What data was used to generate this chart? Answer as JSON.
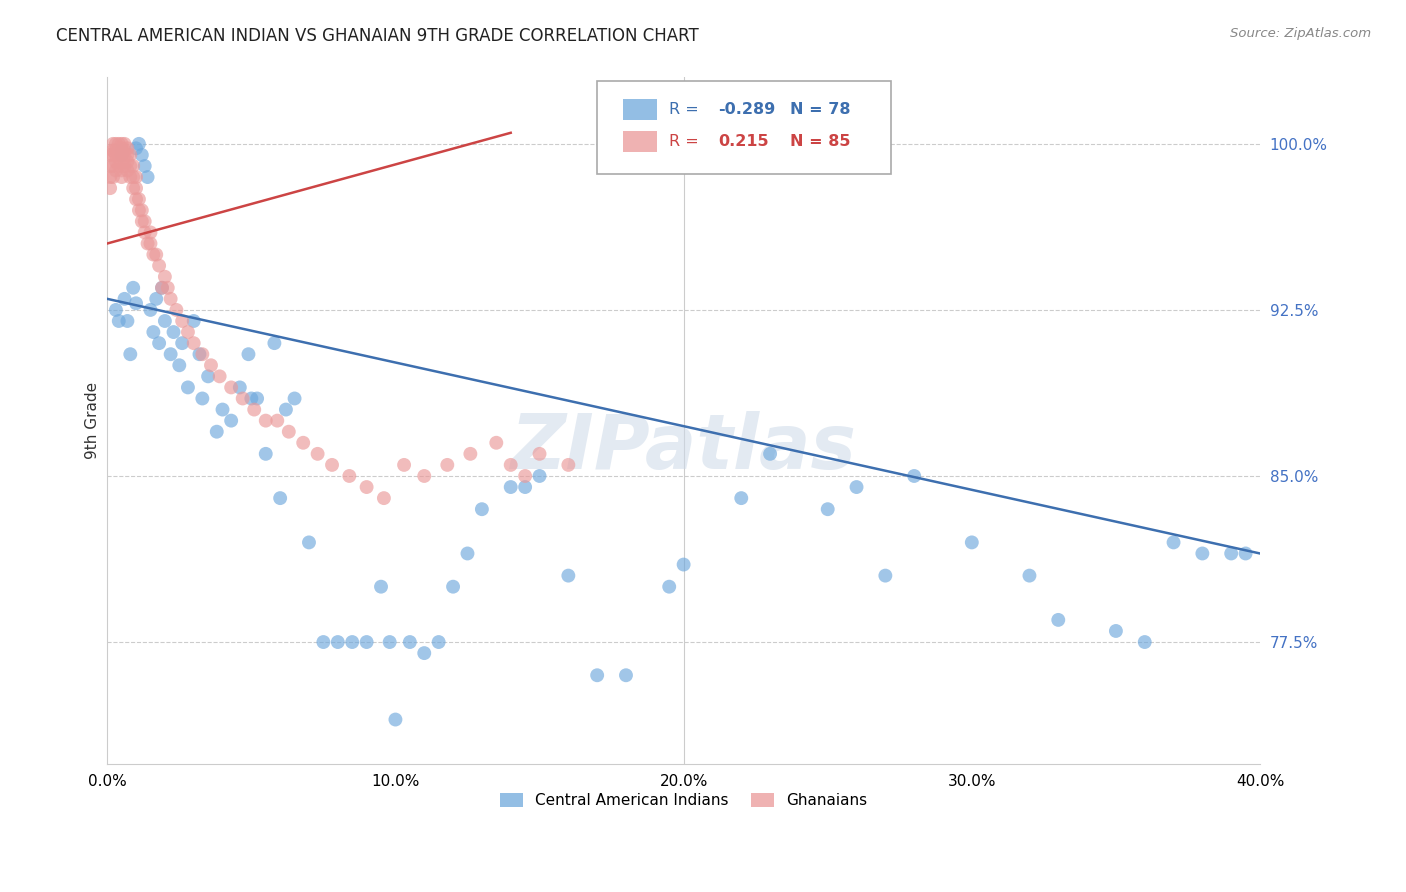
{
  "title": "CENTRAL AMERICAN INDIAN VS GHANAIAN 9TH GRADE CORRELATION CHART",
  "source": "Source: ZipAtlas.com",
  "ylabel": "9th Grade",
  "ylabel_ticks": [
    77.5,
    85.0,
    92.5,
    100.0
  ],
  "ylabel_tick_labels": [
    "77.5%",
    "85.0%",
    "92.5%",
    "100.0%"
  ],
  "xtick_positions": [
    0,
    10,
    20,
    30,
    40
  ],
  "xtick_labels": [
    "0.0%",
    "10.0%",
    "20.0%",
    "30.0%",
    "40.0%"
  ],
  "xmin": 0.0,
  "xmax": 40.0,
  "ymin": 72.0,
  "ymax": 103.0,
  "blue_R": -0.289,
  "blue_N": 78,
  "pink_R": 0.215,
  "pink_N": 85,
  "legend_label_blue": "Central American Indians",
  "legend_label_pink": "Ghanaians",
  "watermark": "ZIPatlas",
  "blue_color": "#6fa8dc",
  "pink_color": "#ea9999",
  "blue_line_color": "#3d6faf",
  "pink_line_color": "#cc4444",
  "background_color": "#ffffff",
  "blue_line_x0": 0.0,
  "blue_line_y0": 93.0,
  "blue_line_x1": 40.0,
  "blue_line_y1": 81.5,
  "pink_line_x0": 0.0,
  "pink_line_y0": 95.5,
  "pink_line_x1": 14.0,
  "pink_line_y1": 100.5,
  "blue_x": [
    0.3,
    0.4,
    0.5,
    0.5,
    0.6,
    0.7,
    0.8,
    0.9,
    1.0,
    1.0,
    1.1,
    1.2,
    1.3,
    1.4,
    1.5,
    1.6,
    1.7,
    1.8,
    1.9,
    2.0,
    2.2,
    2.3,
    2.5,
    2.6,
    2.8,
    3.0,
    3.2,
    3.5,
    3.8,
    4.0,
    4.3,
    4.6,
    4.9,
    5.2,
    5.5,
    5.8,
    6.2,
    6.5,
    7.0,
    7.5,
    8.0,
    8.5,
    9.0,
    9.5,
    10.0,
    10.5,
    11.0,
    11.5,
    12.0,
    12.5,
    13.0,
    14.0,
    15.0,
    16.0,
    17.0,
    18.0,
    20.0,
    22.0,
    23.0,
    25.0,
    26.0,
    27.0,
    28.0,
    30.0,
    32.0,
    33.0,
    35.0,
    36.0,
    37.0,
    38.0,
    39.0,
    39.5,
    5.0,
    6.0,
    3.3,
    9.8,
    14.5,
    19.5
  ],
  "blue_y": [
    92.5,
    92.0,
    99.7,
    99.5,
    93.0,
    92.0,
    90.5,
    93.5,
    99.8,
    92.8,
    100.0,
    99.5,
    99.0,
    98.5,
    92.5,
    91.5,
    93.0,
    91.0,
    93.5,
    92.0,
    90.5,
    91.5,
    90.0,
    91.0,
    89.0,
    92.0,
    90.5,
    89.5,
    87.0,
    88.0,
    87.5,
    89.0,
    90.5,
    88.5,
    86.0,
    91.0,
    88.0,
    88.5,
    82.0,
    77.5,
    77.5,
    77.5,
    77.5,
    80.0,
    74.0,
    77.5,
    77.0,
    77.5,
    80.0,
    81.5,
    83.5,
    84.5,
    85.0,
    80.5,
    76.0,
    76.0,
    81.0,
    84.0,
    86.0,
    83.5,
    84.5,
    80.5,
    85.0,
    82.0,
    80.5,
    78.5,
    78.0,
    77.5,
    82.0,
    81.5,
    81.5,
    81.5,
    88.5,
    84.0,
    88.5,
    77.5,
    84.5,
    80.0
  ],
  "pink_x": [
    0.1,
    0.1,
    0.1,
    0.1,
    0.2,
    0.2,
    0.2,
    0.2,
    0.2,
    0.3,
    0.3,
    0.3,
    0.3,
    0.3,
    0.4,
    0.4,
    0.4,
    0.4,
    0.5,
    0.5,
    0.5,
    0.5,
    0.5,
    0.5,
    0.6,
    0.6,
    0.6,
    0.6,
    0.7,
    0.7,
    0.7,
    0.7,
    0.8,
    0.8,
    0.8,
    0.9,
    0.9,
    0.9,
    1.0,
    1.0,
    1.0,
    1.1,
    1.1,
    1.2,
    1.2,
    1.3,
    1.3,
    1.4,
    1.5,
    1.5,
    1.6,
    1.7,
    1.8,
    1.9,
    2.0,
    2.1,
    2.2,
    2.4,
    2.6,
    2.8,
    3.0,
    3.3,
    3.6,
    3.9,
    4.3,
    4.7,
    5.1,
    5.5,
    5.9,
    6.3,
    6.8,
    7.3,
    7.8,
    8.4,
    9.0,
    9.6,
    10.3,
    11.0,
    11.8,
    12.6,
    13.5,
    14.0,
    14.5,
    15.0,
    16.0
  ],
  "pink_y": [
    99.5,
    99.0,
    98.5,
    98.0,
    100.0,
    99.7,
    99.5,
    99.0,
    98.5,
    100.0,
    99.7,
    99.5,
    99.2,
    98.8,
    100.0,
    99.7,
    99.5,
    99.0,
    100.0,
    99.8,
    99.5,
    99.2,
    98.8,
    98.5,
    100.0,
    99.7,
    99.5,
    99.0,
    99.8,
    99.5,
    99.2,
    98.8,
    99.5,
    99.0,
    98.5,
    99.0,
    98.5,
    98.0,
    98.5,
    98.0,
    97.5,
    97.5,
    97.0,
    97.0,
    96.5,
    96.5,
    96.0,
    95.5,
    96.0,
    95.5,
    95.0,
    95.0,
    94.5,
    93.5,
    94.0,
    93.5,
    93.0,
    92.5,
    92.0,
    91.5,
    91.0,
    90.5,
    90.0,
    89.5,
    89.0,
    88.5,
    88.0,
    87.5,
    87.5,
    87.0,
    86.5,
    86.0,
    85.5,
    85.0,
    84.5,
    84.0,
    85.5,
    85.0,
    85.5,
    86.0,
    86.5,
    85.5,
    85.0,
    86.0,
    85.5
  ]
}
